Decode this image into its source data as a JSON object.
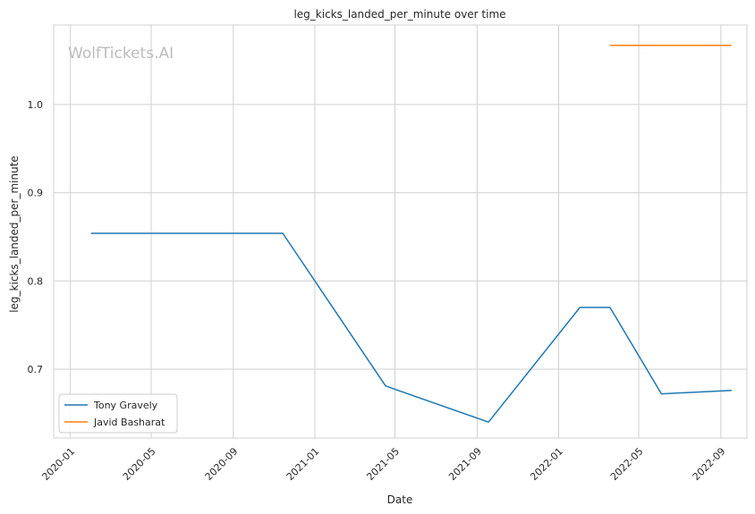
{
  "chart_data": {
    "type": "line",
    "title": "leg_kicks_landed_per_minute over time",
    "xlabel": "Date",
    "ylabel": "leg_kicks_landed_per_minute",
    "watermark": "WolfTickets.AI",
    "xlim": [
      "2019-12-07",
      "2022-10-10"
    ],
    "ylim": [
      0.622,
      1.09
    ],
    "x_ticks": [
      "2020-01",
      "2020-05",
      "2020-09",
      "2021-01",
      "2021-05",
      "2021-09",
      "2022-01",
      "2022-05",
      "2022-09"
    ],
    "y_ticks": [
      0.7,
      0.8,
      0.9,
      1.0
    ],
    "y_tick_labels": [
      "0.7",
      "0.8",
      "0.9",
      "1.0"
    ],
    "grid": true,
    "legend_position": "lower-left",
    "series": [
      {
        "name": "Tony Gravely",
        "color": "#1f77b4",
        "x": [
          "2020-02-01",
          "2020-11-14",
          "2021-04-17",
          "2021-09-18",
          "2022-02-02",
          "2022-03-19",
          "2022-06-04",
          "2022-09-17"
        ],
        "y": [
          0.854,
          0.854,
          0.681,
          0.64,
          0.77,
          0.77,
          0.672,
          0.676
        ]
      },
      {
        "name": "Javid Basharat",
        "color": "#ff7f0e",
        "x": [
          "2022-03-19",
          "2022-09-17"
        ],
        "y": [
          1.067,
          1.067
        ]
      }
    ]
  }
}
